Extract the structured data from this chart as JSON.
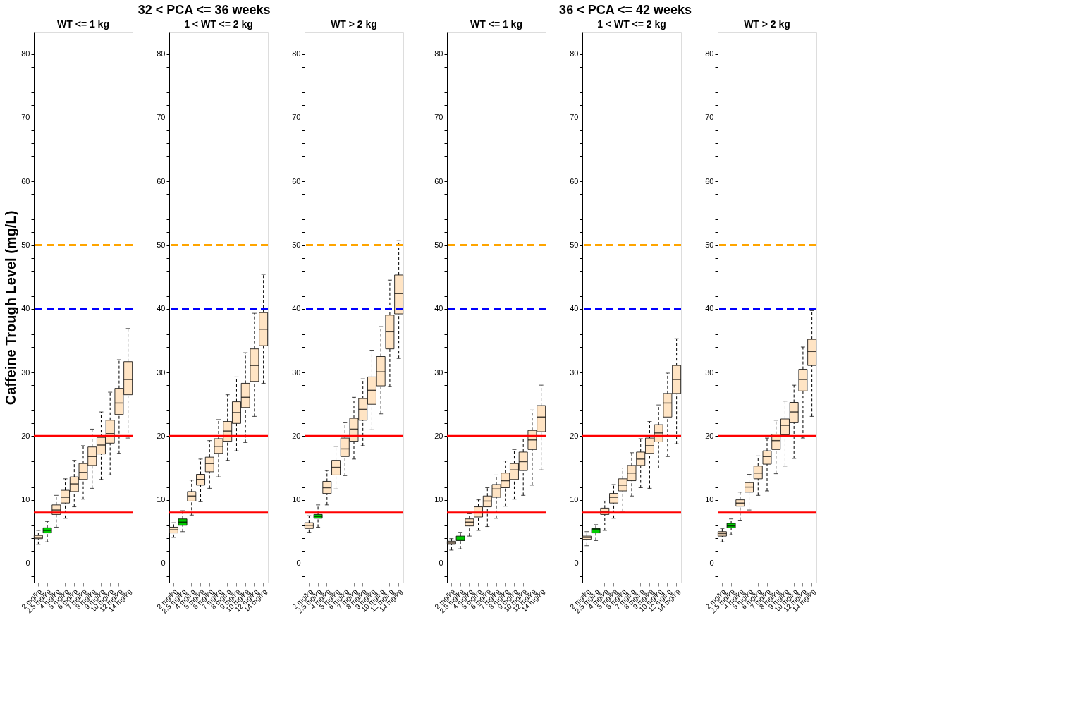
{
  "chart_data": [
    {
      "type": "box",
      "title": "WT <= 1 kg",
      "ylabel": "Caffeine Trough Level (mg/L)",
      "annotations": [
        "32 < PCA <= 36 weeks"
      ],
      "categories": [
        "2 mg/kg",
        "2.5 mg/kg",
        "4 mg/kg",
        "5 mg/kg",
        "6 mg/kg",
        "7 mg/kg",
        "8 mg/kg",
        "9 mg/kg",
        "10 mg/kg",
        "12 mg/kg",
        "14 mg/kg"
      ],
      "colors": [
        "#ffe4c4",
        "#00cc00",
        "#ffe4c4",
        "#ffe4c4",
        "#ffe4c4",
        "#ffe4c4",
        "#ffe4c4",
        "#ffe4c4",
        "#ffe4c4",
        "#ffe4c4",
        "#ffe4c4"
      ],
      "boxes": [
        {
          "low": 3.0,
          "q1": 3.9,
          "median": 4.1,
          "q3": 4.4,
          "high": 5.2
        },
        {
          "low": 3.4,
          "q1": 4.8,
          "median": 5.2,
          "q3": 5.6,
          "high": 6.6
        },
        {
          "low": 5.7,
          "q1": 7.7,
          "median": 8.4,
          "q3": 9.2,
          "high": 10.7
        },
        {
          "low": 7.1,
          "q1": 9.5,
          "median": 10.4,
          "q3": 11.5,
          "high": 13.3
        },
        {
          "low": 8.9,
          "q1": 11.3,
          "median": 12.5,
          "q3": 13.6,
          "high": 16.2
        },
        {
          "low": 10.1,
          "q1": 13.2,
          "median": 14.3,
          "q3": 15.7,
          "high": 18.5
        },
        {
          "low": 11.8,
          "q1": 15.4,
          "median": 16.8,
          "q3": 18.3,
          "high": 21.1
        },
        {
          "low": 13.2,
          "q1": 17.2,
          "median": 18.6,
          "q3": 19.8,
          "high": 23.8
        },
        {
          "low": 13.9,
          "q1": 18.9,
          "median": 20.4,
          "q3": 22.5,
          "high": 26.9
        },
        {
          "low": 17.3,
          "q1": 23.4,
          "median": 25.2,
          "q3": 27.5,
          "high": 32.0
        },
        {
          "low": 19.7,
          "q1": 26.5,
          "median": 28.9,
          "q3": 31.7,
          "high": 36.9
        }
      ],
      "ylim": [
        -3,
        83.4
      ],
      "yticks": [
        {
          "value": -2,
          "label": null
        },
        0,
        {
          "value": 2,
          "label": null
        },
        {
          "value": 4,
          "label": null
        },
        {
          "value": 6,
          "label": null
        },
        {
          "value": 8,
          "label": null
        },
        10,
        {
          "value": 12,
          "label": null
        },
        {
          "value": 14,
          "label": null
        },
        {
          "value": 16,
          "label": null
        },
        {
          "value": 18,
          "label": null
        },
        20,
        {
          "value": 22,
          "label": null
        },
        {
          "value": 24,
          "label": null
        },
        {
          "value": 26,
          "label": null
        },
        {
          "value": 28,
          "label": null
        },
        30,
        {
          "value": 32,
          "label": null
        },
        {
          "value": 34,
          "label": null
        },
        {
          "value": 36,
          "label": null
        },
        {
          "value": 38,
          "label": null
        },
        40,
        {
          "value": 42,
          "label": null
        },
        {
          "value": 44,
          "label": null
        },
        {
          "value": 46,
          "label": null
        },
        {
          "value": 48,
          "label": null
        },
        50,
        {
          "value": 52,
          "label": null
        },
        {
          "value": 54,
          "label": null
        },
        {
          "value": 56,
          "label": null
        },
        {
          "value": 58,
          "label": null
        },
        60,
        {
          "value": 62,
          "label": null
        },
        {
          "value": 64,
          "label": null
        },
        {
          "value": 66,
          "label": null
        },
        {
          "value": 68,
          "label": null
        },
        70,
        {
          "value": 72,
          "label": null
        },
        {
          "value": 74,
          "label": null
        },
        {
          "value": 76,
          "label": null
        },
        {
          "value": 78,
          "label": null
        },
        80,
        {
          "value": 82,
          "label": null
        }
      ],
      "ref_lines": [
        {
          "axis": "y",
          "value": 50,
          "color": "#ffa500",
          "line_style": "dashed"
        },
        {
          "axis": "y",
          "value": 40,
          "color": "#0000ff",
          "line_style": "dashed"
        },
        {
          "axis": "y",
          "value": 20,
          "color": "#ff0000",
          "line_style": "solid"
        },
        {
          "axis": "y",
          "value": 8,
          "color": "#ff0000",
          "line_style": "solid"
        }
      ]
    },
    {
      "type": "box",
      "title": "1 < WT <= 2 kg",
      "categories": [
        "2 mg/kg",
        "2.5 mg/kg",
        "4 mg/kg",
        "5 mg/kg",
        "6 mg/kg",
        "7 mg/kg",
        "8 mg/kg",
        "9 mg/kg",
        "10 mg/kg",
        "12 mg/kg",
        "14 mg/kg"
      ],
      "colors": [
        "#ffe4c4",
        "#00cc00",
        "#ffe4c4",
        "#ffe4c4",
        "#ffe4c4",
        "#ffe4c4",
        "#ffe4c4",
        "#ffe4c4",
        "#ffe4c4",
        "#ffe4c4",
        "#ffe4c4"
      ],
      "boxes": [
        {
          "low": 4.1,
          "q1": 4.8,
          "median": 5.3,
          "q3": 5.7,
          "high": 6.4
        },
        {
          "low": 5.0,
          "q1": 6.0,
          "median": 6.5,
          "q3": 7.0,
          "high": 8.3
        },
        {
          "low": 7.6,
          "q1": 9.8,
          "median": 10.6,
          "q3": 11.3,
          "high": 13.1
        },
        {
          "low": 9.7,
          "q1": 12.3,
          "median": 13.2,
          "q3": 14.0,
          "high": 16.4
        },
        {
          "low": 11.8,
          "q1": 14.4,
          "median": 15.7,
          "q3": 16.7,
          "high": 19.3
        },
        {
          "low": 13.6,
          "q1": 17.3,
          "median": 18.4,
          "q3": 19.6,
          "high": 22.6
        },
        {
          "low": 16.2,
          "q1": 19.2,
          "median": 20.8,
          "q3": 22.3,
          "high": 26.5
        },
        {
          "low": 17.7,
          "q1": 22.0,
          "median": 23.7,
          "q3": 25.4,
          "high": 29.3
        },
        {
          "low": 19.0,
          "q1": 24.5,
          "median": 26.1,
          "q3": 28.3,
          "high": 33.1
        },
        {
          "low": 23.1,
          "q1": 28.6,
          "median": 31.1,
          "q3": 33.7,
          "high": 39.3
        },
        {
          "low": 28.3,
          "q1": 34.2,
          "median": 36.8,
          "q3": 39.4,
          "high": 45.4
        }
      ],
      "ylim": [
        -3,
        83.4
      ],
      "yticks": [
        {
          "value": -2,
          "label": null
        },
        0,
        {
          "value": 2,
          "label": null
        },
        {
          "value": 4,
          "label": null
        },
        {
          "value": 6,
          "label": null
        },
        {
          "value": 8,
          "label": null
        },
        10,
        {
          "value": 12,
          "label": null
        },
        {
          "value": 14,
          "label": null
        },
        {
          "value": 16,
          "label": null
        },
        {
          "value": 18,
          "label": null
        },
        20,
        {
          "value": 22,
          "label": null
        },
        {
          "value": 24,
          "label": null
        },
        {
          "value": 26,
          "label": null
        },
        {
          "value": 28,
          "label": null
        },
        30,
        {
          "value": 32,
          "label": null
        },
        {
          "value": 34,
          "label": null
        },
        {
          "value": 36,
          "label": null
        },
        {
          "value": 38,
          "label": null
        },
        40,
        {
          "value": 42,
          "label": null
        },
        {
          "value": 44,
          "label": null
        },
        {
          "value": 46,
          "label": null
        },
        {
          "value": 48,
          "label": null
        },
        50,
        {
          "value": 52,
          "label": null
        },
        {
          "value": 54,
          "label": null
        },
        {
          "value": 56,
          "label": null
        },
        {
          "value": 58,
          "label": null
        },
        60,
        {
          "value": 62,
          "label": null
        },
        {
          "value": 64,
          "label": null
        },
        {
          "value": 66,
          "label": null
        },
        {
          "value": 68,
          "label": null
        },
        70,
        {
          "value": 72,
          "label": null
        },
        {
          "value": 74,
          "label": null
        },
        {
          "value": 76,
          "label": null
        },
        {
          "value": 78,
          "label": null
        },
        80,
        {
          "value": 82,
          "label": null
        }
      ],
      "ref_lines": [
        {
          "axis": "y",
          "value": 50,
          "color": "#ffa500",
          "line_style": "dashed"
        },
        {
          "axis": "y",
          "value": 40,
          "color": "#0000ff",
          "line_style": "dashed"
        },
        {
          "axis": "y",
          "value": 20,
          "color": "#ff0000",
          "line_style": "solid"
        },
        {
          "axis": "y",
          "value": 8,
          "color": "#ff0000",
          "line_style": "solid"
        }
      ]
    },
    {
      "type": "box",
      "title": "WT > 2 kg",
      "categories": [
        "2 mg/kg",
        "2.5 mg/kg",
        "4 mg/kg",
        "5 mg/kg",
        "6 mg/kg",
        "7 mg/kg",
        "8 mg/kg",
        "9 mg/kg",
        "10 mg/kg",
        "12 mg/kg",
        "14 mg/kg"
      ],
      "colors": [
        "#ffe4c4",
        "#00cc00",
        "#ffe4c4",
        "#ffe4c4",
        "#ffe4c4",
        "#ffe4c4",
        "#ffe4c4",
        "#ffe4c4",
        "#ffe4c4",
        "#ffe4c4",
        "#ffe4c4"
      ],
      "boxes": [
        {
          "low": 4.9,
          "q1": 5.5,
          "median": 6.0,
          "q3": 6.4,
          "high": 7.5
        },
        {
          "low": 5.7,
          "q1": 7.1,
          "median": 7.4,
          "q3": 7.7,
          "high": 9.2
        },
        {
          "low": 9.2,
          "q1": 11.0,
          "median": 11.9,
          "q3": 12.9,
          "high": 14.6
        },
        {
          "low": 11.7,
          "q1": 13.9,
          "median": 15.1,
          "q3": 16.2,
          "high": 18.4
        },
        {
          "low": 13.8,
          "q1": 16.8,
          "median": 18.0,
          "q3": 19.7,
          "high": 22.1
        },
        {
          "low": 16.4,
          "q1": 19.2,
          "median": 21.1,
          "q3": 22.8,
          "high": 26.1
        },
        {
          "low": 18.5,
          "q1": 22.5,
          "median": 24.2,
          "q3": 25.9,
          "high": 29.0
        },
        {
          "low": 21.0,
          "q1": 25.0,
          "median": 27.2,
          "q3": 29.3,
          "high": 33.5
        },
        {
          "low": 23.5,
          "q1": 27.9,
          "median": 30.1,
          "q3": 32.5,
          "high": 37.2
        },
        {
          "low": 27.8,
          "q1": 33.7,
          "median": 36.4,
          "q3": 39.0,
          "high": 44.5
        },
        {
          "low": 32.2,
          "q1": 39.2,
          "median": 42.4,
          "q3": 45.3,
          "high": 50.7
        }
      ],
      "ylim": [
        -3,
        83.4
      ],
      "yticks": [
        {
          "value": -2,
          "label": null
        },
        0,
        {
          "value": 2,
          "label": null
        },
        {
          "value": 4,
          "label": null
        },
        {
          "value": 6,
          "label": null
        },
        {
          "value": 8,
          "label": null
        },
        10,
        {
          "value": 12,
          "label": null
        },
        {
          "value": 14,
          "label": null
        },
        {
          "value": 16,
          "label": null
        },
        {
          "value": 18,
          "label": null
        },
        20,
        {
          "value": 22,
          "label": null
        },
        {
          "value": 24,
          "label": null
        },
        {
          "value": 26,
          "label": null
        },
        {
          "value": 28,
          "label": null
        },
        30,
        {
          "value": 32,
          "label": null
        },
        {
          "value": 34,
          "label": null
        },
        {
          "value": 36,
          "label": null
        },
        {
          "value": 38,
          "label": null
        },
        40,
        {
          "value": 42,
          "label": null
        },
        {
          "value": 44,
          "label": null
        },
        {
          "value": 46,
          "label": null
        },
        {
          "value": 48,
          "label": null
        },
        50,
        {
          "value": 52,
          "label": null
        },
        {
          "value": 54,
          "label": null
        },
        {
          "value": 56,
          "label": null
        },
        {
          "value": 58,
          "label": null
        },
        60,
        {
          "value": 62,
          "label": null
        },
        {
          "value": 64,
          "label": null
        },
        {
          "value": 66,
          "label": null
        },
        {
          "value": 68,
          "label": null
        },
        70,
        {
          "value": 72,
          "label": null
        },
        {
          "value": 74,
          "label": null
        },
        {
          "value": 76,
          "label": null
        },
        {
          "value": 78,
          "label": null
        },
        80,
        {
          "value": 82,
          "label": null
        }
      ],
      "ref_lines": [
        {
          "axis": "y",
          "value": 50,
          "color": "#ffa500",
          "line_style": "dashed"
        },
        {
          "axis": "y",
          "value": 40,
          "color": "#0000ff",
          "line_style": "dashed"
        },
        {
          "axis": "y",
          "value": 20,
          "color": "#ff0000",
          "line_style": "solid"
        },
        {
          "axis": "y",
          "value": 8,
          "color": "#ff0000",
          "line_style": "solid"
        }
      ]
    },
    {
      "type": "box",
      "title": "WT <= 1 kg",
      "annotations": [
        "36 < PCA <= 42 weeks"
      ],
      "categories": [
        "2 mg/kg",
        "2.5 mg/kg",
        "4 mg/kg",
        "5 mg/kg",
        "6 mg/kg",
        "7 mg/kg",
        "8 mg/kg",
        "9 mg/kg",
        "10 mg/kg",
        "12 mg/kg",
        "14 mg/kg"
      ],
      "colors": [
        "#ffe4c4",
        "#00cc00",
        "#ffe4c4",
        "#ffe4c4",
        "#ffe4c4",
        "#ffe4c4",
        "#ffe4c4",
        "#ffe4c4",
        "#ffe4c4",
        "#ffe4c4",
        "#ffe4c4"
      ],
      "boxes": [
        {
          "low": 2.1,
          "q1": 3.0,
          "median": 3.2,
          "q3": 3.5,
          "high": 3.9
        },
        {
          "low": 2.3,
          "q1": 3.6,
          "median": 3.7,
          "q3": 4.3,
          "high": 4.9
        },
        {
          "low": 4.3,
          "q1": 5.9,
          "median": 6.5,
          "q3": 7.0,
          "high": 7.8
        },
        {
          "low": 5.2,
          "q1": 7.3,
          "median": 8.0,
          "q3": 8.9,
          "high": 10.0
        },
        {
          "low": 5.8,
          "q1": 8.9,
          "median": 9.8,
          "q3": 10.6,
          "high": 11.9
        },
        {
          "low": 7.1,
          "q1": 10.4,
          "median": 11.7,
          "q3": 12.4,
          "high": 13.9
        },
        {
          "low": 9.0,
          "q1": 11.9,
          "median": 13.0,
          "q3": 14.2,
          "high": 16.1
        },
        {
          "low": 10.1,
          "q1": 13.2,
          "median": 14.7,
          "q3": 15.7,
          "high": 17.9
        },
        {
          "low": 10.7,
          "q1": 14.6,
          "median": 16.0,
          "q3": 17.5,
          "high": 20.0
        },
        {
          "low": 12.3,
          "q1": 17.9,
          "median": 19.4,
          "q3": 20.9,
          "high": 24.1
        },
        {
          "low": 14.7,
          "q1": 20.7,
          "median": 23.0,
          "q3": 24.8,
          "high": 28.0
        }
      ],
      "ylim": [
        -3,
        83.4
      ],
      "yticks": [
        {
          "value": -2,
          "label": null
        },
        0,
        {
          "value": 2,
          "label": null
        },
        {
          "value": 4,
          "label": null
        },
        {
          "value": 6,
          "label": null
        },
        {
          "value": 8,
          "label": null
        },
        10,
        {
          "value": 12,
          "label": null
        },
        {
          "value": 14,
          "label": null
        },
        {
          "value": 16,
          "label": null
        },
        {
          "value": 18,
          "label": null
        },
        20,
        {
          "value": 22,
          "label": null
        },
        {
          "value": 24,
          "label": null
        },
        {
          "value": 26,
          "label": null
        },
        {
          "value": 28,
          "label": null
        },
        30,
        {
          "value": 32,
          "label": null
        },
        {
          "value": 34,
          "label": null
        },
        {
          "value": 36,
          "label": null
        },
        {
          "value": 38,
          "label": null
        },
        40,
        {
          "value": 42,
          "label": null
        },
        {
          "value": 44,
          "label": null
        },
        {
          "value": 46,
          "label": null
        },
        {
          "value": 48,
          "label": null
        },
        50,
        {
          "value": 52,
          "label": null
        },
        {
          "value": 54,
          "label": null
        },
        {
          "value": 56,
          "label": null
        },
        {
          "value": 58,
          "label": null
        },
        60,
        {
          "value": 62,
          "label": null
        },
        {
          "value": 64,
          "label": null
        },
        {
          "value": 66,
          "label": null
        },
        {
          "value": 68,
          "label": null
        },
        70,
        {
          "value": 72,
          "label": null
        },
        {
          "value": 74,
          "label": null
        },
        {
          "value": 76,
          "label": null
        },
        {
          "value": 78,
          "label": null
        },
        80,
        {
          "value": 82,
          "label": null
        }
      ],
      "ref_lines": [
        {
          "axis": "y",
          "value": 50,
          "color": "#ffa500",
          "line_style": "dashed"
        },
        {
          "axis": "y",
          "value": 40,
          "color": "#0000ff",
          "line_style": "dashed"
        },
        {
          "axis": "y",
          "value": 20,
          "color": "#ff0000",
          "line_style": "solid"
        },
        {
          "axis": "y",
          "value": 8,
          "color": "#ff0000",
          "line_style": "solid"
        }
      ]
    },
    {
      "type": "box",
      "title": "1 < WT <= 2 kg",
      "categories": [
        "2 mg/kg",
        "2.5 mg/kg",
        "4 mg/kg",
        "5 mg/kg",
        "6 mg/kg",
        "7 mg/kg",
        "8 mg/kg",
        "9 mg/kg",
        "10 mg/kg",
        "12 mg/kg",
        "14 mg/kg"
      ],
      "colors": [
        "#ffe4c4",
        "#00cc00",
        "#ffe4c4",
        "#ffe4c4",
        "#ffe4c4",
        "#ffe4c4",
        "#ffe4c4",
        "#ffe4c4",
        "#ffe4c4",
        "#ffe4c4",
        "#ffe4c4"
      ],
      "boxes": [
        {
          "low": 2.8,
          "q1": 3.8,
          "median": 4.1,
          "q3": 4.3,
          "high": 5.0
        },
        {
          "low": 3.6,
          "q1": 4.8,
          "median": 5.4,
          "q3": 5.5,
          "high": 6.1
        },
        {
          "low": 5.2,
          "q1": 7.7,
          "median": 8.1,
          "q3": 8.7,
          "high": 9.8
        },
        {
          "low": 7.1,
          "q1": 9.5,
          "median": 10.4,
          "q3": 11.0,
          "high": 12.4
        },
        {
          "low": 8.2,
          "q1": 11.4,
          "median": 12.3,
          "q3": 13.3,
          "high": 15.0
        },
        {
          "low": 10.6,
          "q1": 13.0,
          "median": 14.2,
          "q3": 15.4,
          "high": 17.4
        },
        {
          "low": 11.9,
          "q1": 15.4,
          "median": 16.4,
          "q3": 17.5,
          "high": 19.6
        },
        {
          "low": 11.8,
          "q1": 17.3,
          "median": 18.5,
          "q3": 19.7,
          "high": 22.3
        },
        {
          "low": 15.0,
          "q1": 19.1,
          "median": 20.5,
          "q3": 21.8,
          "high": 24.9
        },
        {
          "low": 16.8,
          "q1": 23.0,
          "median": 25.2,
          "q3": 26.7,
          "high": 29.9
        },
        {
          "low": 18.8,
          "q1": 26.7,
          "median": 28.9,
          "q3": 31.1,
          "high": 35.3
        }
      ],
      "ylim": [
        -3,
        83.4
      ],
      "yticks": [
        {
          "value": -2,
          "label": null
        },
        0,
        {
          "value": 2,
          "label": null
        },
        {
          "value": 4,
          "label": null
        },
        {
          "value": 6,
          "label": null
        },
        {
          "value": 8,
          "label": null
        },
        10,
        {
          "value": 12,
          "label": null
        },
        {
          "value": 14,
          "label": null
        },
        {
          "value": 16,
          "label": null
        },
        {
          "value": 18,
          "label": null
        },
        20,
        {
          "value": 22,
          "label": null
        },
        {
          "value": 24,
          "label": null
        },
        {
          "value": 26,
          "label": null
        },
        {
          "value": 28,
          "label": null
        },
        30,
        {
          "value": 32,
          "label": null
        },
        {
          "value": 34,
          "label": null
        },
        {
          "value": 36,
          "label": null
        },
        {
          "value": 38,
          "label": null
        },
        40,
        {
          "value": 42,
          "label": null
        },
        {
          "value": 44,
          "label": null
        },
        {
          "value": 46,
          "label": null
        },
        {
          "value": 48,
          "label": null
        },
        50,
        {
          "value": 52,
          "label": null
        },
        {
          "value": 54,
          "label": null
        },
        {
          "value": 56,
          "label": null
        },
        {
          "value": 58,
          "label": null
        },
        60,
        {
          "value": 62,
          "label": null
        },
        {
          "value": 64,
          "label": null
        },
        {
          "value": 66,
          "label": null
        },
        {
          "value": 68,
          "label": null
        },
        70,
        {
          "value": 72,
          "label": null
        },
        {
          "value": 74,
          "label": null
        },
        {
          "value": 76,
          "label": null
        },
        {
          "value": 78,
          "label": null
        },
        80,
        {
          "value": 82,
          "label": null
        }
      ],
      "ref_lines": [
        {
          "axis": "y",
          "value": 50,
          "color": "#ffa500",
          "line_style": "dashed"
        },
        {
          "axis": "y",
          "value": 40,
          "color": "#0000ff",
          "line_style": "dashed"
        },
        {
          "axis": "y",
          "value": 20,
          "color": "#ff0000",
          "line_style": "solid"
        },
        {
          "axis": "y",
          "value": 8,
          "color": "#ff0000",
          "line_style": "solid"
        }
      ]
    },
    {
      "type": "box",
      "title": "WT > 2 kg",
      "categories": [
        "2 mg/kg",
        "2.5 mg/kg",
        "4 mg/kg",
        "5 mg/kg",
        "6 mg/kg",
        "7 mg/kg",
        "8 mg/kg",
        "9 mg/kg",
        "10 mg/kg",
        "12 mg/kg",
        "14 mg/kg"
      ],
      "colors": [
        "#ffe4c4",
        "#00cc00",
        "#ffe4c4",
        "#ffe4c4",
        "#ffe4c4",
        "#ffe4c4",
        "#ffe4c4",
        "#ffe4c4",
        "#ffe4c4",
        "#ffe4c4",
        "#ffe4c4"
      ],
      "boxes": [
        {
          "low": 3.4,
          "q1": 4.3,
          "median": 4.7,
          "q3": 5.0,
          "high": 5.5
        },
        {
          "low": 4.5,
          "q1": 5.6,
          "median": 5.9,
          "q3": 6.3,
          "high": 7.0
        },
        {
          "low": 6.8,
          "q1": 9.0,
          "median": 9.5,
          "q3": 10.0,
          "high": 11.2
        },
        {
          "low": 8.4,
          "q1": 11.2,
          "median": 12.0,
          "q3": 12.7,
          "high": 14.0
        },
        {
          "low": 10.7,
          "q1": 13.3,
          "median": 14.2,
          "q3": 15.3,
          "high": 16.9
        },
        {
          "low": 11.4,
          "q1": 15.6,
          "median": 16.8,
          "q3": 17.7,
          "high": 19.7
        },
        {
          "low": 14.1,
          "q1": 17.9,
          "median": 19.3,
          "q3": 20.3,
          "high": 22.5
        },
        {
          "low": 15.3,
          "q1": 20.2,
          "median": 21.7,
          "q3": 22.7,
          "high": 25.5
        },
        {
          "low": 16.5,
          "q1": 22.1,
          "median": 23.8,
          "q3": 25.3,
          "high": 28.0
        },
        {
          "low": 19.7,
          "q1": 27.1,
          "median": 28.9,
          "q3": 30.5,
          "high": 34.0
        },
        {
          "low": 23.1,
          "q1": 31.1,
          "median": 33.3,
          "q3": 35.2,
          "high": 39.7
        }
      ],
      "ylim": [
        -3,
        83.4
      ],
      "yticks": [
        {
          "value": -2,
          "label": null
        },
        0,
        {
          "value": 2,
          "label": null
        },
        {
          "value": 4,
          "label": null
        },
        {
          "value": 6,
          "label": null
        },
        {
          "value": 8,
          "label": null
        },
        10,
        {
          "value": 12,
          "label": null
        },
        {
          "value": 14,
          "label": null
        },
        {
          "value": 16,
          "label": null
        },
        {
          "value": 18,
          "label": null
        },
        20,
        {
          "value": 22,
          "label": null
        },
        {
          "value": 24,
          "label": null
        },
        {
          "value": 26,
          "label": null
        },
        {
          "value": 28,
          "label": null
        },
        30,
        {
          "value": 32,
          "label": null
        },
        {
          "value": 34,
          "label": null
        },
        {
          "value": 36,
          "label": null
        },
        {
          "value": 38,
          "label": null
        },
        40,
        {
          "value": 42,
          "label": null
        },
        {
          "value": 44,
          "label": null
        },
        {
          "value": 46,
          "label": null
        },
        {
          "value": 48,
          "label": null
        },
        50,
        {
          "value": 52,
          "label": null
        },
        {
          "value": 54,
          "label": null
        },
        {
          "value": 56,
          "label": null
        },
        {
          "value": 58,
          "label": null
        },
        60,
        {
          "value": 62,
          "label": null
        },
        {
          "value": 64,
          "label": null
        },
        {
          "value": 66,
          "label": null
        },
        {
          "value": 68,
          "label": null
        },
        70,
        {
          "value": 72,
          "label": null
        },
        {
          "value": 74,
          "label": null
        },
        {
          "value": 76,
          "label": null
        },
        {
          "value": 78,
          "label": null
        },
        80,
        {
          "value": 82,
          "label": null
        }
      ],
      "ref_lines": [
        {
          "axis": "y",
          "value": 50,
          "color": "#ffa500",
          "line_style": "dashed"
        },
        {
          "axis": "y",
          "value": 40,
          "color": "#0000ff",
          "line_style": "dashed"
        },
        {
          "axis": "y",
          "value": 20,
          "color": "#ff0000",
          "line_style": "solid"
        },
        {
          "axis": "y",
          "value": 8,
          "color": "#ff0000",
          "line_style": "solid"
        }
      ]
    }
  ]
}
